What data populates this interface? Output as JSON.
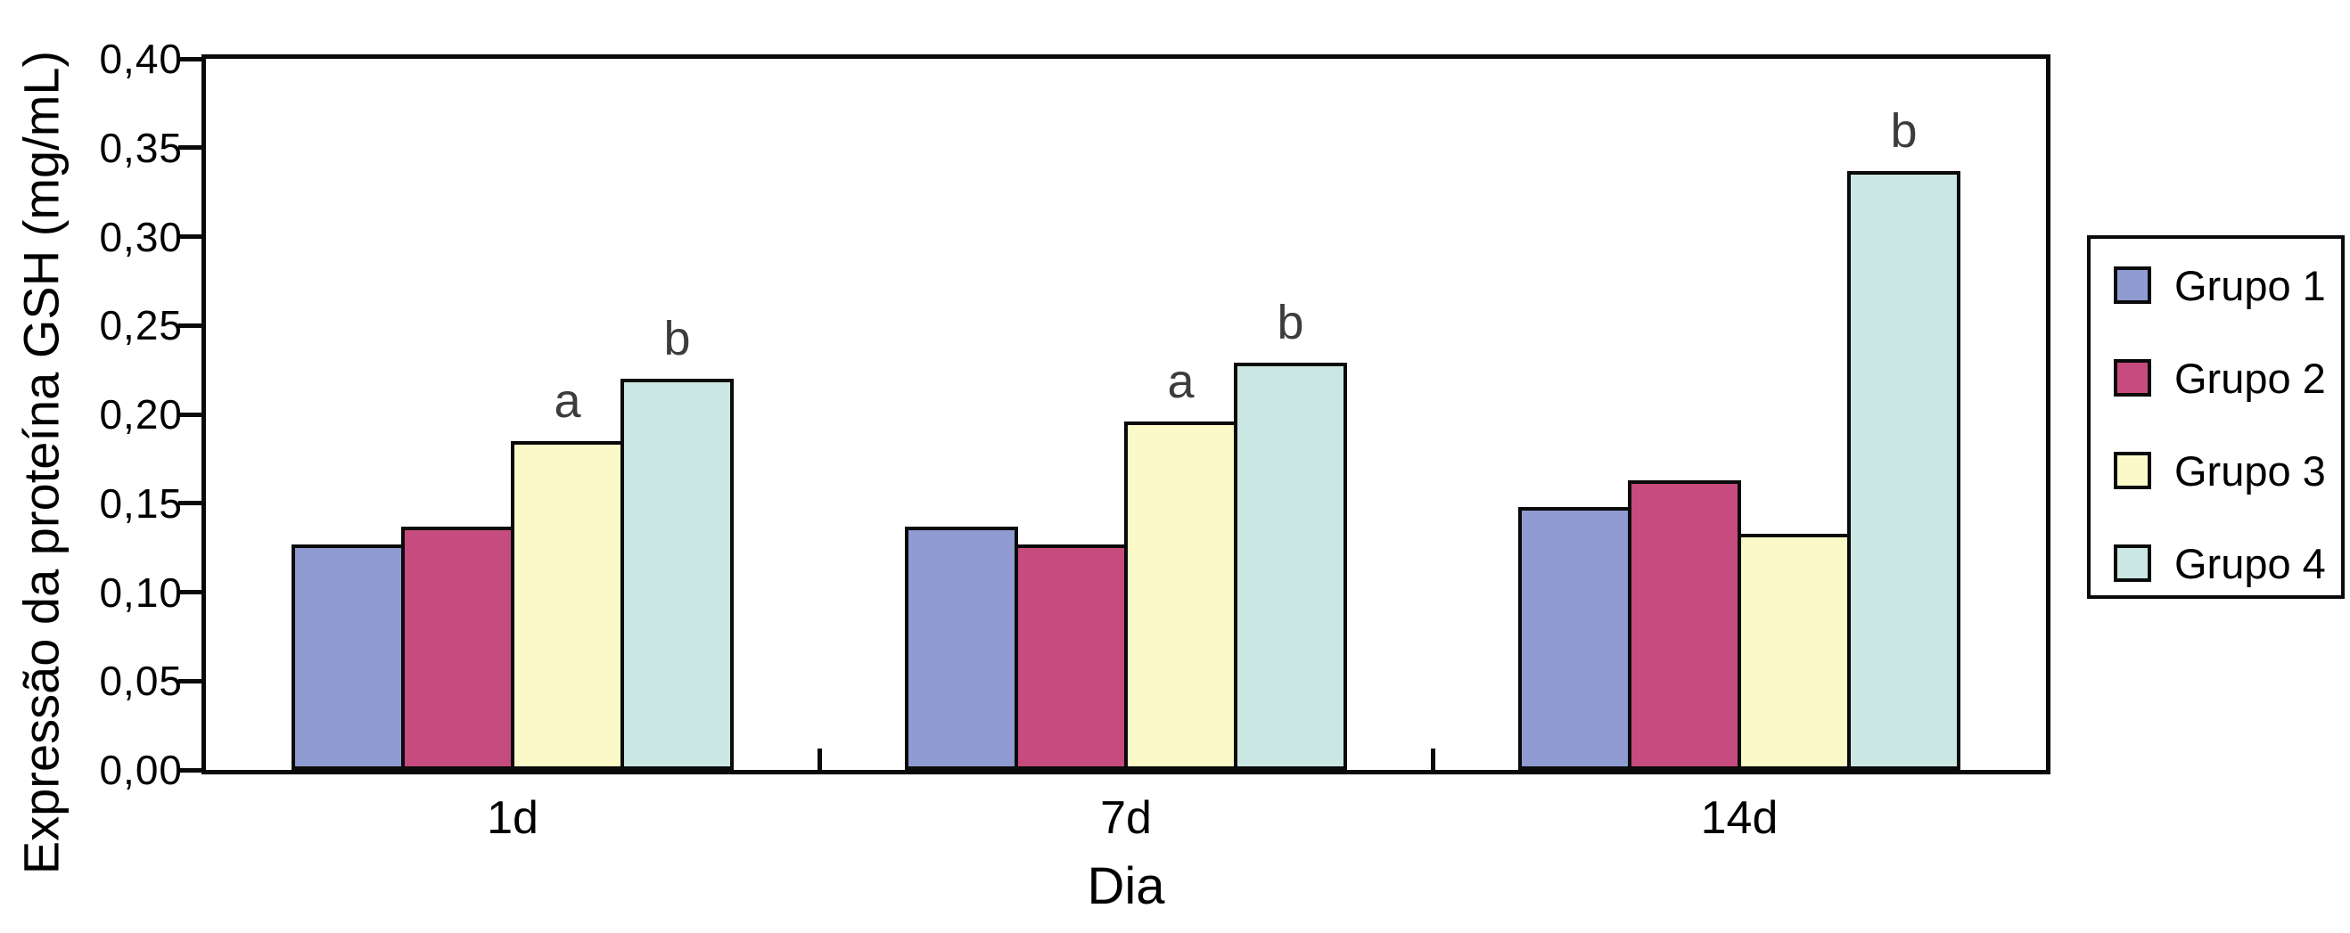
{
  "chart_data": {
    "type": "bar",
    "title": "",
    "ylabel": "Expressão da proteína GSH (mg/mL)",
    "xlabel": "Dia",
    "categories": [
      "1d",
      "7d",
      "14d"
    ],
    "series": [
      {
        "name": "Grupo 1",
        "color": "#8f9bd1",
        "values": [
          0.127,
          0.137,
          0.148
        ]
      },
      {
        "name": "Grupo 2",
        "color": "#c64b7e",
        "values": [
          0.137,
          0.127,
          0.163
        ]
      },
      {
        "name": "Grupo 3",
        "color": "#fbf9c8",
        "values": [
          0.185,
          0.196,
          0.133
        ]
      },
      {
        "name": "Grupo 4",
        "color": "#cbe7e3",
        "values": [
          0.22,
          0.229,
          0.337
        ]
      }
    ],
    "ylim": [
      0,
      0.4
    ],
    "ytick_labels": [
      "0,00",
      "0,05",
      "0,10",
      "0,15",
      "0,20",
      "0,25",
      "0,30",
      "0,35",
      "0,40"
    ],
    "grid": false,
    "legend_position": "right",
    "annotations": [
      {
        "text": "a",
        "category": 0,
        "series": 2
      },
      {
        "text": "b",
        "category": 0,
        "series": 3
      },
      {
        "text": "a",
        "category": 1,
        "series": 2
      },
      {
        "text": "b",
        "category": 1,
        "series": 3
      },
      {
        "text": "b",
        "category": 2,
        "series": 3
      }
    ],
    "annotation_color": "#3c3c3c",
    "axis_color": "#0a0a0a",
    "bar_border_color": "#0a0a0a"
  }
}
